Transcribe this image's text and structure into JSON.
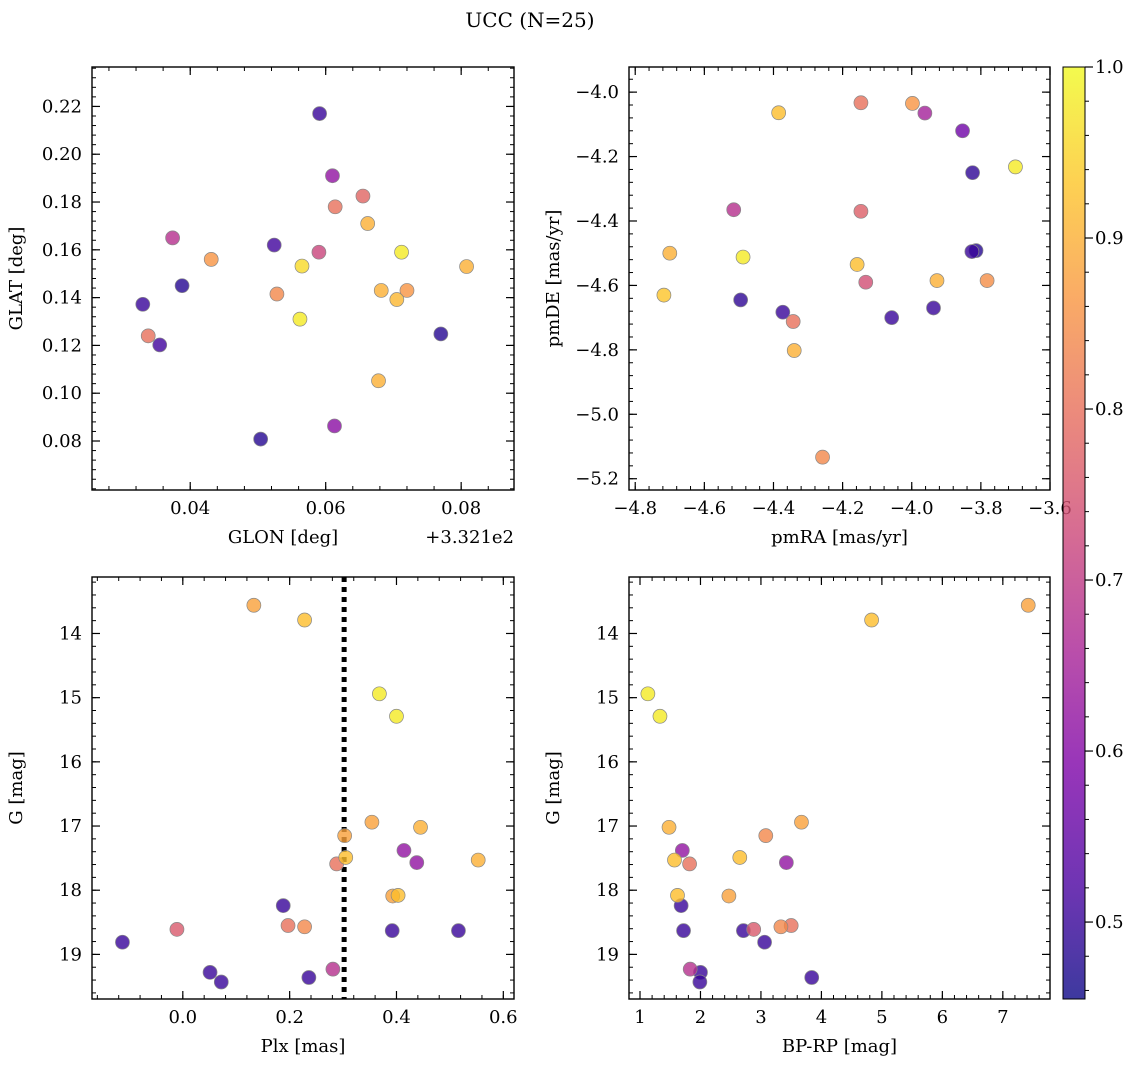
{
  "title": "UCC (N=25)",
  "colorbar": {
    "min": 0.455,
    "max": 1.0,
    "ticks": [
      0.5,
      0.6,
      0.7,
      0.8,
      0.9,
      1.0
    ],
    "tick_labels": [
      "0.5",
      "0.6",
      "0.7",
      "0.8",
      "0.9",
      "1.0"
    ],
    "colormap": "plasma"
  },
  "marker_style": {
    "edge_color": "#888888",
    "alpha": 0.8
  },
  "chart_data": [
    {
      "type": "scatter",
      "id": "glon-glat",
      "xlabel": "GLON [deg]",
      "ylabel": "GLAT [deg]",
      "offset_label": "+3.321e2",
      "xlim": [
        0.0255,
        0.0878
      ],
      "ylim": [
        0.0595,
        0.2365
      ],
      "xticks": [
        0.04,
        0.06,
        0.08
      ],
      "xtick_labels": [
        "0.04",
        "0.06",
        "0.08"
      ],
      "yticks": [
        0.08,
        0.1,
        0.12,
        0.14,
        0.16,
        0.18,
        0.2,
        0.22
      ],
      "ytick_labels": [
        "0.08",
        "0.10",
        "0.12",
        "0.14",
        "0.16",
        "0.18",
        "0.20",
        "0.22"
      ],
      "points": [
        {
          "x": 0.0591,
          "y": 0.217,
          "c": 0.5
        },
        {
          "x": 0.061,
          "y": 0.191,
          "c": 0.62
        },
        {
          "x": 0.0655,
          "y": 0.1825,
          "c": 0.78
        },
        {
          "x": 0.0614,
          "y": 0.178,
          "c": 0.8
        },
        {
          "x": 0.0662,
          "y": 0.171,
          "c": 0.9
        },
        {
          "x": 0.0374,
          "y": 0.165,
          "c": 0.68
        },
        {
          "x": 0.0524,
          "y": 0.162,
          "c": 0.51
        },
        {
          "x": 0.059,
          "y": 0.159,
          "c": 0.72
        },
        {
          "x": 0.0712,
          "y": 0.159,
          "c": 0.98
        },
        {
          "x": 0.0431,
          "y": 0.156,
          "c": 0.86
        },
        {
          "x": 0.0565,
          "y": 0.1532,
          "c": 0.96
        },
        {
          "x": 0.0808,
          "y": 0.153,
          "c": 0.9
        },
        {
          "x": 0.0388,
          "y": 0.145,
          "c": 0.48
        },
        {
          "x": 0.0682,
          "y": 0.143,
          "c": 0.9
        },
        {
          "x": 0.072,
          "y": 0.143,
          "c": 0.86
        },
        {
          "x": 0.0528,
          "y": 0.1415,
          "c": 0.84
        },
        {
          "x": 0.0705,
          "y": 0.1392,
          "c": 0.91
        },
        {
          "x": 0.033,
          "y": 0.1372,
          "c": 0.5
        },
        {
          "x": 0.0562,
          "y": 0.131,
          "c": 0.98
        },
        {
          "x": 0.077,
          "y": 0.1248,
          "c": 0.48
        },
        {
          "x": 0.0338,
          "y": 0.124,
          "c": 0.8
        },
        {
          "x": 0.0355,
          "y": 0.1202,
          "c": 0.51
        },
        {
          "x": 0.0678,
          "y": 0.1052,
          "c": 0.9
        },
        {
          "x": 0.0504,
          "y": 0.0808,
          "c": 0.48
        },
        {
          "x": 0.0613,
          "y": 0.0863,
          "c": 0.61
        }
      ]
    },
    {
      "type": "scatter",
      "id": "pmra-pmde",
      "xlabel": "pmRA [mas/yr]",
      "ylabel": "pmDE [mas/yr]",
      "xlim": [
        -4.818,
        -3.6
      ],
      "ylim": [
        -5.235,
        -3.922
      ],
      "xticks": [
        -4.8,
        -4.6,
        -4.4,
        -4.2,
        -4.0,
        -3.8,
        -3.6
      ],
      "xtick_labels": [
        "−4.8",
        "−4.6",
        "−4.4",
        "−4.2",
        "−4.0",
        "−3.8",
        "−3.6"
      ],
      "yticks": [
        -5.2,
        -5.0,
        -4.8,
        -4.6,
        -4.4,
        -4.2,
        -4.0
      ],
      "ytick_labels": [
        "−5.2",
        "−5.0",
        "−4.8",
        "−4.6",
        "−4.4",
        "−4.2",
        "−4.0"
      ],
      "points": [
        {
          "x": -4.147,
          "y": -4.033,
          "c": 0.8
        },
        {
          "x": -3.998,
          "y": -4.035,
          "c": 0.86
        },
        {
          "x": -3.962,
          "y": -4.065,
          "c": 0.65
        },
        {
          "x": -4.385,
          "y": -4.064,
          "c": 0.92
        },
        {
          "x": -3.853,
          "y": -4.12,
          "c": 0.57
        },
        {
          "x": -3.7,
          "y": -4.232,
          "c": 0.98
        },
        {
          "x": -3.824,
          "y": -4.25,
          "c": 0.49
        },
        {
          "x": -4.515,
          "y": -4.365,
          "c": 0.68
        },
        {
          "x": -4.147,
          "y": -4.37,
          "c": 0.77
        },
        {
          "x": -4.7,
          "y": -4.5,
          "c": 0.9
        },
        {
          "x": -4.488,
          "y": -4.512,
          "c": 0.98
        },
        {
          "x": -3.826,
          "y": -4.495,
          "c": 0.5
        },
        {
          "x": -3.814,
          "y": -4.492,
          "c": 0.48
        },
        {
          "x": -4.158,
          "y": -4.535,
          "c": 0.92
        },
        {
          "x": -3.927,
          "y": -4.585,
          "c": 0.9
        },
        {
          "x": -3.782,
          "y": -4.585,
          "c": 0.85
        },
        {
          "x": -4.133,
          "y": -4.59,
          "c": 0.74
        },
        {
          "x": -4.717,
          "y": -4.63,
          "c": 0.93
        },
        {
          "x": -4.495,
          "y": -4.645,
          "c": 0.49
        },
        {
          "x": -3.937,
          "y": -4.67,
          "c": 0.5
        },
        {
          "x": -4.373,
          "y": -4.683,
          "c": 0.5
        },
        {
          "x": -4.058,
          "y": -4.7,
          "c": 0.5
        },
        {
          "x": -4.343,
          "y": -4.712,
          "c": 0.8
        },
        {
          "x": -4.34,
          "y": -4.802,
          "c": 0.9
        },
        {
          "x": -4.258,
          "y": -5.133,
          "c": 0.84
        }
      ]
    },
    {
      "type": "scatter",
      "id": "plx-g",
      "xlabel": "Plx [mas]",
      "ylabel": "G [mag]",
      "y_inverted": true,
      "xlim": [
        -0.17,
        0.62
      ],
      "ylim": [
        19.695,
        13.12
      ],
      "xticks": [
        0.0,
        0.2,
        0.4,
        0.6
      ],
      "xtick_labels": [
        "0.0",
        "0.2",
        "0.4",
        "0.6"
      ],
      "yticks": [
        14,
        15,
        16,
        17,
        18,
        19
      ],
      "ytick_labels": [
        "14",
        "15",
        "16",
        "17",
        "18",
        "19"
      ],
      "vline": {
        "x": 0.302,
        "style": "dotted"
      },
      "points": [
        {
          "x": 0.133,
          "y": 13.56,
          "c": 0.88
        },
        {
          "x": 0.228,
          "y": 13.79,
          "c": 0.92
        },
        {
          "x": 0.368,
          "y": 14.94,
          "c": 0.98
        },
        {
          "x": 0.4,
          "y": 15.29,
          "c": 0.98
        },
        {
          "x": 0.354,
          "y": 16.94,
          "c": 0.88
        },
        {
          "x": 0.445,
          "y": 17.02,
          "c": 0.9
        },
        {
          "x": 0.303,
          "y": 17.15,
          "c": 0.88
        },
        {
          "x": 0.414,
          "y": 17.38,
          "c": 0.62
        },
        {
          "x": 0.305,
          "y": 17.49,
          "c": 0.92
        },
        {
          "x": 0.553,
          "y": 17.53,
          "c": 0.9
        },
        {
          "x": 0.438,
          "y": 17.57,
          "c": 0.62
        },
        {
          "x": 0.288,
          "y": 17.59,
          "c": 0.8
        },
        {
          "x": 0.393,
          "y": 18.09,
          "c": 0.88
        },
        {
          "x": 0.403,
          "y": 18.08,
          "c": 0.92
        },
        {
          "x": 0.188,
          "y": 18.24,
          "c": 0.5
        },
        {
          "x": 0.197,
          "y": 18.55,
          "c": 0.8
        },
        {
          "x": 0.228,
          "y": 18.57,
          "c": 0.84
        },
        {
          "x": -0.011,
          "y": 18.61,
          "c": 0.76
        },
        {
          "x": 0.392,
          "y": 18.63,
          "c": 0.5
        },
        {
          "x": 0.516,
          "y": 18.63,
          "c": 0.5
        },
        {
          "x": -0.113,
          "y": 18.81,
          "c": 0.5
        },
        {
          "x": 0.281,
          "y": 19.23,
          "c": 0.68
        },
        {
          "x": 0.051,
          "y": 19.28,
          "c": 0.5
        },
        {
          "x": 0.236,
          "y": 19.36,
          "c": 0.5
        },
        {
          "x": 0.072,
          "y": 19.43,
          "c": 0.5
        }
      ]
    },
    {
      "type": "scatter",
      "id": "bprp-g",
      "xlabel": "BP-RP [mag]",
      "ylabel": "G [mag]",
      "y_inverted": true,
      "xlim": [
        0.818,
        7.78
      ],
      "ylim": [
        19.695,
        13.12
      ],
      "xticks": [
        1,
        2,
        3,
        4,
        5,
        6,
        7
      ],
      "xtick_labels": [
        "1",
        "2",
        "3",
        "4",
        "5",
        "6",
        "7"
      ],
      "yticks": [
        14,
        15,
        16,
        17,
        18,
        19
      ],
      "ytick_labels": [
        "14",
        "15",
        "16",
        "17",
        "18",
        "19"
      ],
      "points": [
        {
          "x": 7.42,
          "y": 13.56,
          "c": 0.88
        },
        {
          "x": 4.83,
          "y": 13.79,
          "c": 0.92
        },
        {
          "x": 1.13,
          "y": 14.94,
          "c": 0.98
        },
        {
          "x": 1.33,
          "y": 15.29,
          "c": 0.98
        },
        {
          "x": 3.67,
          "y": 16.94,
          "c": 0.88
        },
        {
          "x": 1.48,
          "y": 17.02,
          "c": 0.9
        },
        {
          "x": 3.08,
          "y": 17.15,
          "c": 0.84
        },
        {
          "x": 1.7,
          "y": 17.38,
          "c": 0.62
        },
        {
          "x": 2.65,
          "y": 17.49,
          "c": 0.92
        },
        {
          "x": 1.57,
          "y": 17.53,
          "c": 0.92
        },
        {
          "x": 3.42,
          "y": 17.57,
          "c": 0.62
        },
        {
          "x": 1.82,
          "y": 17.59,
          "c": 0.8
        },
        {
          "x": 1.62,
          "y": 18.08,
          "c": 0.92
        },
        {
          "x": 2.47,
          "y": 18.09,
          "c": 0.88
        },
        {
          "x": 1.68,
          "y": 18.24,
          "c": 0.5
        },
        {
          "x": 3.5,
          "y": 18.55,
          "c": 0.8
        },
        {
          "x": 3.33,
          "y": 18.57,
          "c": 0.84
        },
        {
          "x": 2.88,
          "y": 18.61,
          "c": 0.76
        },
        {
          "x": 1.72,
          "y": 18.63,
          "c": 0.5
        },
        {
          "x": 2.71,
          "y": 18.63,
          "c": 0.5
        },
        {
          "x": 3.06,
          "y": 18.81,
          "c": 0.5
        },
        {
          "x": 1.83,
          "y": 19.23,
          "c": 0.68
        },
        {
          "x": 2.0,
          "y": 19.28,
          "c": 0.5
        },
        {
          "x": 3.84,
          "y": 19.36,
          "c": 0.5
        },
        {
          "x": 1.99,
          "y": 19.43,
          "c": 0.5
        }
      ]
    }
  ]
}
